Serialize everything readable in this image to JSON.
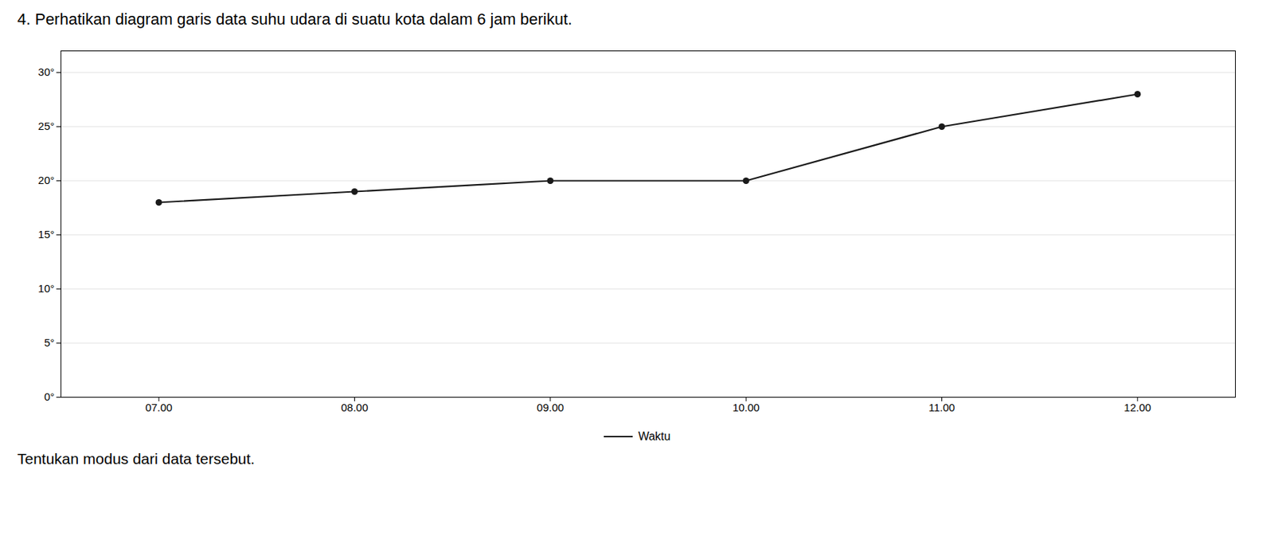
{
  "chart_data": {
    "type": "line",
    "title": "4. Perhatikan diagram garis data suhu udara di suatu kota dalam 6 jam berikut.",
    "subtitle": "Tentukan modus dari data tersebut.",
    "x": [
      7,
      8,
      9,
      10,
      11,
      12
    ],
    "series": [
      {
        "name": "Waktu",
        "color": "#1a1a1a",
        "marker": "circle",
        "values": [
          18,
          19,
          20,
          20,
          25,
          28
        ]
      }
    ],
    "xlim": [
      6.5,
      12.5
    ],
    "xticks": [
      {
        "value": 7,
        "label": "07.00"
      },
      {
        "value": 8,
        "label": "08.00"
      },
      {
        "value": 9,
        "label": "09.00"
      },
      {
        "value": 10,
        "label": "10.00"
      },
      {
        "value": 11,
        "label": "11.00"
      },
      {
        "value": 12,
        "label": "12.00"
      }
    ],
    "ylim": [
      0,
      32
    ],
    "yticks": [
      {
        "value": 0,
        "label": "0°"
      },
      {
        "value": 5,
        "label": "5°"
      },
      {
        "value": 10,
        "label": "10°"
      },
      {
        "value": 15,
        "label": "15°"
      },
      {
        "value": 20,
        "label": "20°"
      },
      {
        "value": 25,
        "label": "25°"
      },
      {
        "value": 30,
        "label": "30°"
      }
    ],
    "grid": "y",
    "legend": "bottom"
  }
}
